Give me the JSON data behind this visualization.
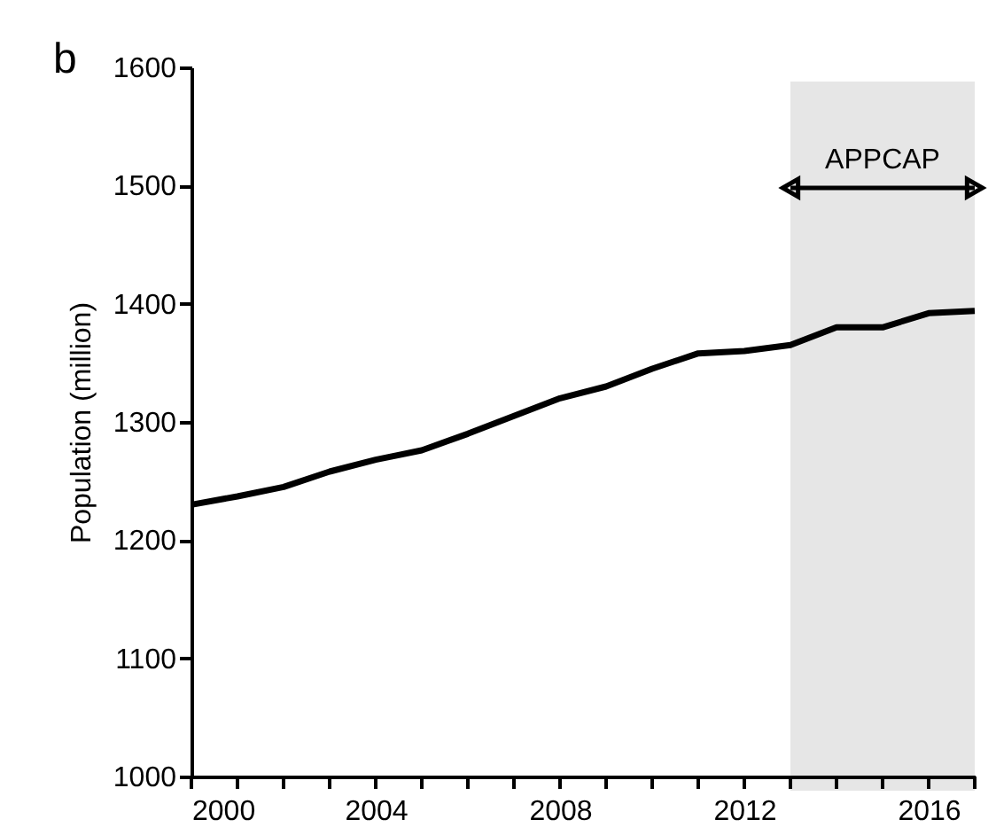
{
  "chart_data": {
    "type": "line",
    "ylabel": "Population  (million)",
    "annotations": [
      "b"
    ],
    "x": [
      2000,
      2001,
      2002,
      2003,
      2004,
      2005,
      2006,
      2007,
      2008,
      2009,
      2010,
      2011,
      2012,
      2013,
      2014,
      2015,
      2016,
      2017
    ],
    "series": [
      {
        "color": "#000000",
        "values": [
          1230,
          1237,
          1245,
          1258,
          1268,
          1276,
          1290,
          1305,
          1320,
          1330,
          1345,
          1358,
          1360,
          1365,
          1380,
          1380,
          1392,
          1394
        ]
      }
    ],
    "xlim": [
      2000,
      2017
    ],
    "xticks": [
      2000,
      {
        "value": 2001,
        "label": null
      },
      {
        "value": 2002,
        "label": null
      },
      {
        "value": 2003,
        "label": null
      },
      2004,
      {
        "value": 2005,
        "label": null
      },
      {
        "value": 2006,
        "label": null
      },
      {
        "value": 2007,
        "label": null
      },
      2008,
      {
        "value": 2009,
        "label": null
      },
      {
        "value": 2010,
        "label": null
      },
      {
        "value": 2011,
        "label": null
      },
      2012,
      {
        "value": 2013,
        "label": null
      },
      {
        "value": 2014,
        "label": null
      },
      {
        "value": 2015,
        "label": null
      },
      2016,
      {
        "value": 2017,
        "label": null
      }
    ],
    "ylim": [
      1000,
      1600
    ],
    "yticks": [
      1000,
      1100,
      1200,
      1300,
      1400,
      1500,
      1600
    ],
    "bands": [
      {
        "axis": "x",
        "from": 2013,
        "to": 2017,
        "label": "APPCAP",
        "color": "#e6e6e6"
      }
    ],
    "grid": false,
    "line_style": "solid",
    "marker": "none"
  }
}
